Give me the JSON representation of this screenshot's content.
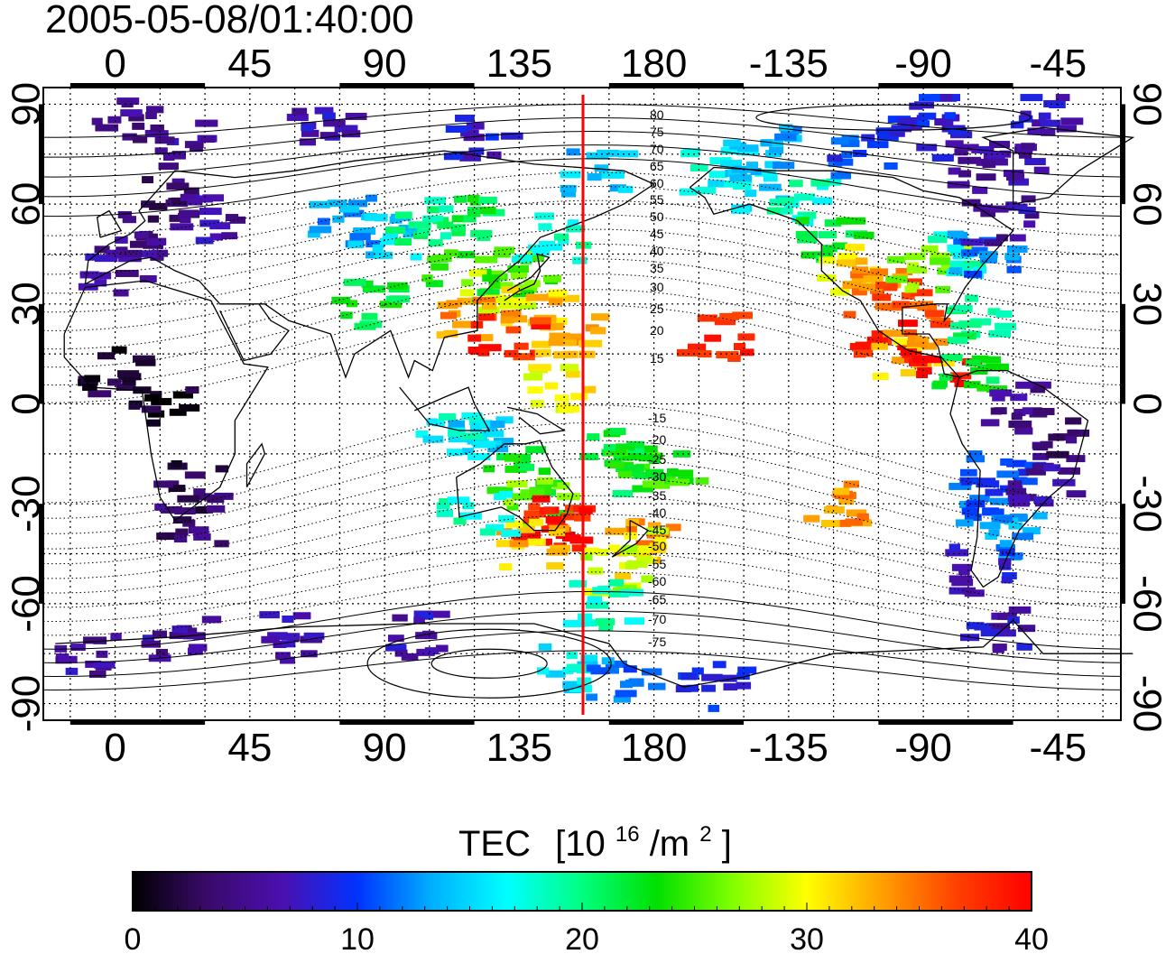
{
  "header": {
    "timestamp": "2005-05-08/01:40:00"
  },
  "map": {
    "top_lon_labels": [
      "0",
      "45",
      "90",
      "135",
      "180",
      "-135",
      "-90",
      "-45"
    ],
    "bottom_lon_labels": [
      "0",
      "45",
      "90",
      "135",
      "180",
      "-135",
      "-90",
      "-45"
    ],
    "left_lat_labels": [
      "90",
      "60",
      "30",
      "0",
      "-30",
      "-60",
      "-90"
    ],
    "right_lat_labels": [
      "90",
      "60",
      "30",
      "0",
      "-30",
      "-60",
      "-90"
    ],
    "contour_labels_north": [
      "80",
      "75",
      "70",
      "65",
      "60",
      "55",
      "50",
      "45",
      "40",
      "35",
      "30",
      "25",
      "20",
      "15"
    ],
    "contour_labels_south": [
      "-15",
      "-20",
      "-25",
      "-30",
      "-35",
      "-40",
      "-45",
      "-50",
      "-55",
      "-60",
      "-65",
      "-70",
      "-75"
    ],
    "line_color": "#ff0000"
  },
  "colorbar": {
    "title_prefix": "TEC",
    "title_units_base": "[10",
    "title_units_exp1": "16",
    "title_units_mid": "/m",
    "title_units_exp2": "2",
    "title_units_end": "]",
    "tick_labels": [
      "0",
      "10",
      "20",
      "30",
      "40"
    ],
    "min": 0,
    "max": 40,
    "colors": [
      "#000000",
      "#3a0a6a",
      "#4b0fb0",
      "#0033ff",
      "#00b0ff",
      "#00ffff",
      "#00ff80",
      "#00e000",
      "#80ff00",
      "#ffff00",
      "#ffa000",
      "#ff4000",
      "#ff0000"
    ]
  },
  "tec_patches": [
    {
      "lon": 10,
      "lat": 50,
      "value": 5
    },
    {
      "lon": 0,
      "lat": 40,
      "value": 6
    },
    {
      "lon": 20,
      "lat": 62,
      "value": 4
    },
    {
      "lon": 30,
      "lat": 55,
      "value": 6
    },
    {
      "lon": 20,
      "lat": 78,
      "value": 6
    },
    {
      "lon": 5,
      "lat": 85,
      "value": 5
    },
    {
      "lon": 0,
      "lat": 10,
      "value": 2
    },
    {
      "lon": 15,
      "lat": 0,
      "value": 1
    },
    {
      "lon": 25,
      "lat": -25,
      "value": 3
    },
    {
      "lon": 25,
      "lat": -35,
      "value": 4
    },
    {
      "lon": 75,
      "lat": 55,
      "value": 13
    },
    {
      "lon": 90,
      "lat": 50,
      "value": 15
    },
    {
      "lon": 100,
      "lat": 55,
      "value": 20
    },
    {
      "lon": 120,
      "lat": 55,
      "value": 22
    },
    {
      "lon": 85,
      "lat": 30,
      "value": 22
    },
    {
      "lon": 115,
      "lat": 40,
      "value": 24
    },
    {
      "lon": 125,
      "lat": 35,
      "value": 28
    },
    {
      "lon": 135,
      "lat": 40,
      "value": 25
    },
    {
      "lon": 140,
      "lat": 30,
      "value": 32
    },
    {
      "lon": 120,
      "lat": 25,
      "value": 34
    },
    {
      "lon": 130,
      "lat": 20,
      "value": 38
    },
    {
      "lon": 145,
      "lat": 50,
      "value": 18
    },
    {
      "lon": 150,
      "lat": 20,
      "value": 33
    },
    {
      "lon": 148,
      "lat": 5,
      "value": 30
    },
    {
      "lon": 110,
      "lat": -5,
      "value": 17
    },
    {
      "lon": 120,
      "lat": -10,
      "value": 15
    },
    {
      "lon": 135,
      "lat": -20,
      "value": 23
    },
    {
      "lon": 140,
      "lat": -30,
      "value": 26
    },
    {
      "lon": 145,
      "lat": -37,
      "value": 38
    },
    {
      "lon": 150,
      "lat": -35,
      "value": 40
    },
    {
      "lon": 140,
      "lat": -42,
      "value": 32
    },
    {
      "lon": 120,
      "lat": -32,
      "value": 18
    },
    {
      "lon": 175,
      "lat": -40,
      "value": 34
    },
    {
      "lon": 172,
      "lat": -45,
      "value": 30
    },
    {
      "lon": 168,
      "lat": -50,
      "value": 28
    },
    {
      "lon": 175,
      "lat": -20,
      "value": 22
    },
    {
      "lon": 185,
      "lat": -22,
      "value": 24
    },
    {
      "lon": 165,
      "lat": -15,
      "value": 23
    },
    {
      "lon": 162,
      "lat": -60,
      "value": 18
    },
    {
      "lon": 200,
      "lat": 20,
      "value": 38
    },
    {
      "lon": 200,
      "lat": 70,
      "value": 17
    },
    {
      "lon": 215,
      "lat": 65,
      "value": 15
    },
    {
      "lon": 230,
      "lat": 60,
      "value": 18
    },
    {
      "lon": 240,
      "lat": 50,
      "value": 22
    },
    {
      "lon": 245,
      "lat": 40,
      "value": 31
    },
    {
      "lon": 255,
      "lat": 35,
      "value": 34
    },
    {
      "lon": 265,
      "lat": 30,
      "value": 36
    },
    {
      "lon": 270,
      "lat": 40,
      "value": 27
    },
    {
      "lon": 280,
      "lat": 45,
      "value": 18
    },
    {
      "lon": 290,
      "lat": 45,
      "value": 12
    },
    {
      "lon": 255,
      "lat": 20,
      "value": 38
    },
    {
      "lon": 265,
      "lat": 15,
      "value": 32
    },
    {
      "lon": 275,
      "lat": 10,
      "value": 40
    },
    {
      "lon": 285,
      "lat": 10,
      "value": 22
    },
    {
      "lon": 290,
      "lat": 25,
      "value": 20
    },
    {
      "lon": 250,
      "lat": 75,
      "value": 10
    },
    {
      "lon": 270,
      "lat": 80,
      "value": 8
    },
    {
      "lon": 290,
      "lat": 70,
      "value": 6
    },
    {
      "lon": 300,
      "lat": 75,
      "value": 6
    },
    {
      "lon": 295,
      "lat": 55,
      "value": 6
    },
    {
      "lon": 300,
      "lat": 0,
      "value": 5
    },
    {
      "lon": 310,
      "lat": -10,
      "value": 4
    },
    {
      "lon": 290,
      "lat": -30,
      "value": 11
    },
    {
      "lon": 295,
      "lat": -20,
      "value": 10
    },
    {
      "lon": 300,
      "lat": -40,
      "value": 13
    },
    {
      "lon": 290,
      "lat": -50,
      "value": 8
    },
    {
      "lon": 310,
      "lat": -25,
      "value": 6
    },
    {
      "lon": 240,
      "lat": -30,
      "value": 34
    },
    {
      "lon": 295,
      "lat": -68,
      "value": 7
    },
    {
      "lon": 20,
      "lat": -70,
      "value": 6
    },
    {
      "lon": 60,
      "lat": -70,
      "value": 6
    },
    {
      "lon": 100,
      "lat": -70,
      "value": 7
    },
    {
      "lon": 150,
      "lat": -80,
      "value": 16
    },
    {
      "lon": 170,
      "lat": -82,
      "value": 12
    },
    {
      "lon": 200,
      "lat": -85,
      "value": 9
    },
    {
      "lon": -10,
      "lat": -75,
      "value": 6
    },
    {
      "lon": 70,
      "lat": 82,
      "value": 7
    },
    {
      "lon": 120,
      "lat": 80,
      "value": 8
    },
    {
      "lon": 160,
      "lat": 70,
      "value": 14
    },
    {
      "lon": 270,
      "lat": 88,
      "value": 9
    },
    {
      "lon": 310,
      "lat": 88,
      "value": 7
    },
    {
      "lon": 215,
      "lat": 78,
      "value": 13
    }
  ]
}
